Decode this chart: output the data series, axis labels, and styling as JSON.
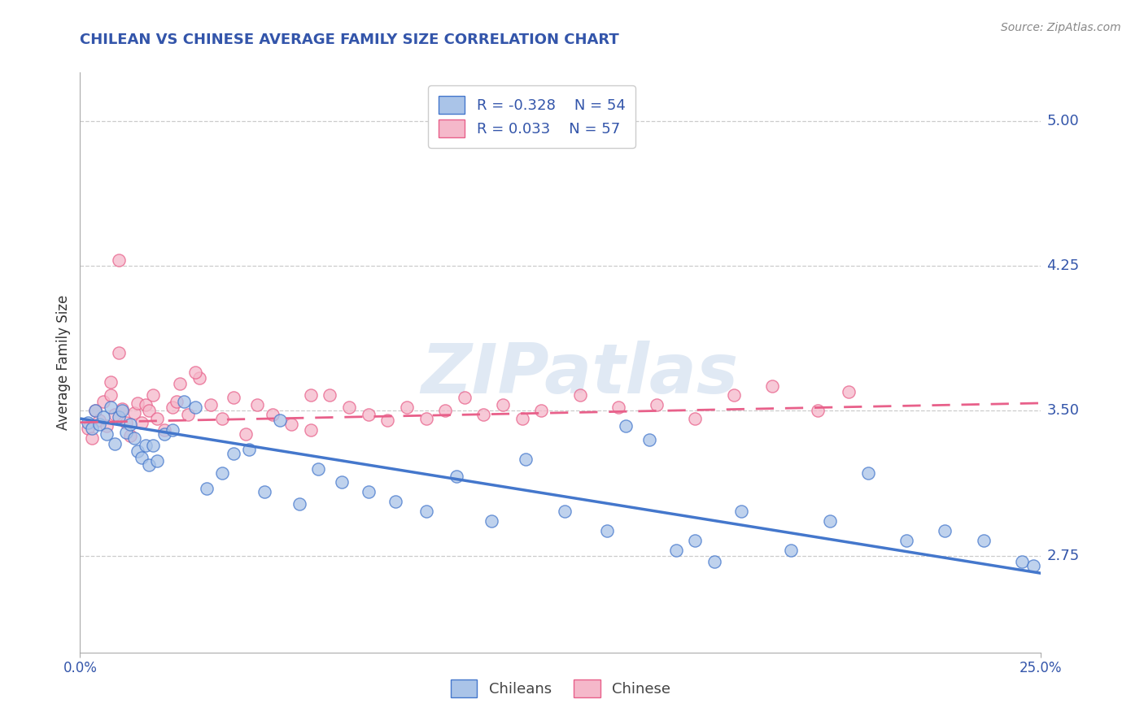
{
  "title": "CHILEAN VS CHINESE AVERAGE FAMILY SIZE CORRELATION CHART",
  "source_text": "Source: ZipAtlas.com",
  "ylabel": "Average Family Size",
  "xlim": [
    0.0,
    0.25
  ],
  "ylim": [
    2.25,
    5.25
  ],
  "yticks": [
    2.75,
    3.5,
    4.25,
    5.0
  ],
  "xticks": [
    0.0,
    0.25
  ],
  "xticklabels": [
    "0.0%",
    "25.0%"
  ],
  "background_color": "#ffffff",
  "grid_color": "#cccccc",
  "title_color": "#3355aa",
  "axis_color": "#3355aa",
  "watermark_text": "ZIPatlas",
  "chilean_R": "-0.328",
  "chilean_N": "54",
  "chinese_R": "0.033",
  "chinese_N": "57",
  "chilean_color": "#4477cc",
  "chilean_fill": "#aac4e8",
  "chinese_color": "#e8608a",
  "chinese_fill": "#f5b8ca",
  "chilean_scatter_x": [
    0.002,
    0.003,
    0.004,
    0.005,
    0.006,
    0.007,
    0.008,
    0.009,
    0.01,
    0.011,
    0.012,
    0.013,
    0.014,
    0.015,
    0.016,
    0.017,
    0.018,
    0.019,
    0.02,
    0.022,
    0.024,
    0.027,
    0.03,
    0.033,
    0.037,
    0.04,
    0.044,
    0.048,
    0.052,
    0.057,
    0.062,
    0.068,
    0.075,
    0.082,
    0.09,
    0.098,
    0.107,
    0.116,
    0.126,
    0.137,
    0.148,
    0.16,
    0.172,
    0.185,
    0.195,
    0.205,
    0.215,
    0.225,
    0.235,
    0.142,
    0.155,
    0.165,
    0.245,
    0.248
  ],
  "chilean_scatter_y": [
    3.44,
    3.41,
    3.5,
    3.43,
    3.47,
    3.38,
    3.52,
    3.33,
    3.47,
    3.5,
    3.39,
    3.43,
    3.36,
    3.29,
    3.26,
    3.32,
    3.22,
    3.32,
    3.24,
    3.38,
    3.4,
    3.55,
    3.52,
    3.1,
    3.18,
    3.28,
    3.3,
    3.08,
    3.45,
    3.02,
    3.2,
    3.13,
    3.08,
    3.03,
    2.98,
    3.16,
    2.93,
    3.25,
    2.98,
    2.88,
    3.35,
    2.83,
    2.98,
    2.78,
    2.93,
    3.18,
    2.83,
    2.88,
    2.83,
    3.42,
    2.78,
    2.72,
    2.72,
    2.7
  ],
  "chinese_scatter_x": [
    0.002,
    0.003,
    0.004,
    0.005,
    0.006,
    0.007,
    0.008,
    0.009,
    0.01,
    0.011,
    0.012,
    0.013,
    0.014,
    0.015,
    0.016,
    0.017,
    0.018,
    0.019,
    0.02,
    0.022,
    0.024,
    0.026,
    0.028,
    0.031,
    0.034,
    0.037,
    0.04,
    0.043,
    0.046,
    0.05,
    0.055,
    0.06,
    0.065,
    0.07,
    0.075,
    0.08,
    0.085,
    0.09,
    0.095,
    0.1,
    0.105,
    0.11,
    0.115,
    0.12,
    0.13,
    0.14,
    0.15,
    0.16,
    0.17,
    0.18,
    0.192,
    0.2,
    0.06,
    0.03,
    0.025,
    0.01,
    0.008
  ],
  "chinese_scatter_y": [
    3.41,
    3.36,
    3.5,
    3.45,
    3.55,
    3.42,
    3.58,
    3.48,
    4.28,
    3.51,
    3.44,
    3.37,
    3.49,
    3.54,
    3.44,
    3.53,
    3.5,
    3.58,
    3.46,
    3.4,
    3.52,
    3.64,
    3.48,
    3.67,
    3.53,
    3.46,
    3.57,
    3.38,
    3.53,
    3.48,
    3.43,
    3.4,
    3.58,
    3.52,
    3.48,
    3.45,
    3.52,
    3.46,
    3.5,
    3.57,
    3.48,
    3.53,
    3.46,
    3.5,
    3.58,
    3.52,
    3.53,
    3.46,
    3.58,
    3.63,
    3.5,
    3.6,
    3.58,
    3.7,
    3.55,
    3.8,
    3.65
  ],
  "chilean_trend_x": [
    0.0,
    0.25
  ],
  "chilean_trend_y": [
    3.46,
    2.66
  ],
  "chinese_trend_x": [
    0.0,
    0.25
  ],
  "chinese_trend_y": [
    3.44,
    3.54
  ],
  "legend_labels": [
    "Chileans",
    "Chinese"
  ],
  "legend_colors": [
    "#aac4e8",
    "#f5b8ca"
  ],
  "legend_edge_colors": [
    "#4477cc",
    "#e8608a"
  ]
}
